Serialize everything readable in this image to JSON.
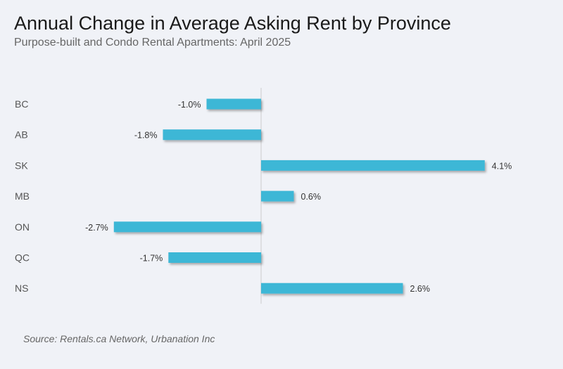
{
  "chart_data": {
    "type": "bar",
    "orientation": "horizontal",
    "title": "Annual Change in Average Asking Rent by Province",
    "subtitle": "Purpose-built and Condo Rental Apartments: April 2025",
    "source": "Source: Rentals.ca Network, Urbanation Inc",
    "categories": [
      "BC",
      "AB",
      "SK",
      "MB",
      "ON",
      "QC",
      "NS"
    ],
    "values": [
      -1.0,
      -1.8,
      4.1,
      0.6,
      -2.7,
      -1.7,
      2.6
    ],
    "value_labels": [
      "-1.0%",
      "-1.8%",
      "4.1%",
      "0.6%",
      "-2.7%",
      "-1.7%",
      "2.6%"
    ],
    "unit": "%",
    "xlabel": "",
    "ylabel": "",
    "grid": false,
    "colors": {
      "bar": "#3db7d6",
      "zero_line": "#cccccc",
      "background": "#f0f2f7"
    }
  }
}
